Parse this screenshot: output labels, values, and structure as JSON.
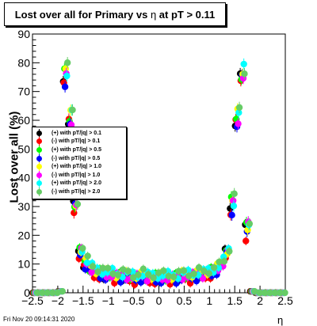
{
  "chart_data": {
    "type": "scatter",
    "title_pre": "Lost over all for Primary vs ",
    "title_eta": "η",
    "title_post": " at pT > 0.11",
    "xlabel": "η",
    "ylabel": "Lost over all (%)",
    "xlim": [
      -2.5,
      2.5
    ],
    "ylim": [
      0,
      90
    ],
    "xticks": [
      "−2.5",
      "−2",
      "−1.5",
      "−1",
      "−0.5",
      "0",
      "0.5",
      "1",
      "1.5",
      "2",
      "2.5"
    ],
    "yticks": [
      "0",
      "10",
      "20",
      "30",
      "40",
      "50",
      "60",
      "70",
      "80",
      "90"
    ],
    "grid": false,
    "legend_position": "middle-left",
    "series": [
      {
        "name": "(+) with pT/|q| > 0.1",
        "color": "#000000",
        "offset": 0.0
      },
      {
        "name": "(-) with pT/|q| > 0.1",
        "color": "#ff0000",
        "offset": -1.5
      },
      {
        "name": "(+) with pT/|q| > 0.5",
        "color": "#00ff00",
        "offset": 1.0
      },
      {
        "name": "(-) with pT/|q| > 0.5",
        "color": "#0000ff",
        "offset": -1.0
      },
      {
        "name": "(+) with pT/|q| > 1.0",
        "color": "#ffff00",
        "offset": 1.5
      },
      {
        "name": "(-) with pT/|q| > 1.0",
        "color": "#ff00ff",
        "offset": 0.5
      },
      {
        "name": "(+) with pT/|q| > 2.0",
        "color": "#00ffff",
        "offset": 2.0
      },
      {
        "name": "(-) with pT/|q| > 2.0",
        "color": "#66cc66",
        "offset": 2.5
      }
    ],
    "base_curve": {
      "x": [
        -2.45,
        -2.35,
        -2.25,
        -2.15,
        -2.05,
        -1.95,
        -1.85,
        -1.75,
        -1.65,
        -1.55,
        -1.45,
        -1.35,
        -1.25,
        -1.15,
        -1.05,
        -0.95,
        -0.85,
        -0.75,
        -0.65,
        -0.55,
        -0.45,
        -0.35,
        -0.25,
        -0.15,
        -0.05,
        0.05,
        0.15,
        0.25,
        0.35,
        0.45,
        0.55,
        0.65,
        0.75,
        0.85,
        0.95,
        1.05,
        1.15,
        1.25,
        1.35,
        1.45,
        1.55,
        1.65,
        1.75,
        1.85,
        1.95,
        2.05,
        2.15,
        2.25,
        2.35,
        2.45
      ],
      "y": [
        0,
        0,
        0,
        0,
        0,
        0.5,
        75,
        60,
        30,
        14,
        10,
        8,
        7,
        6.5,
        6,
        6,
        5.5,
        5.5,
        5.5,
        5,
        5,
        5.5,
        5,
        5,
        5,
        5,
        5,
        5,
        5,
        5.5,
        5.5,
        5.5,
        6,
        6,
        6.5,
        7,
        8,
        10,
        14,
        30,
        60,
        75,
        22,
        0.5,
        0,
        0,
        0,
        0,
        0,
        0
      ]
    }
  },
  "footer": "Fri Nov 20 09:14:31 2020"
}
